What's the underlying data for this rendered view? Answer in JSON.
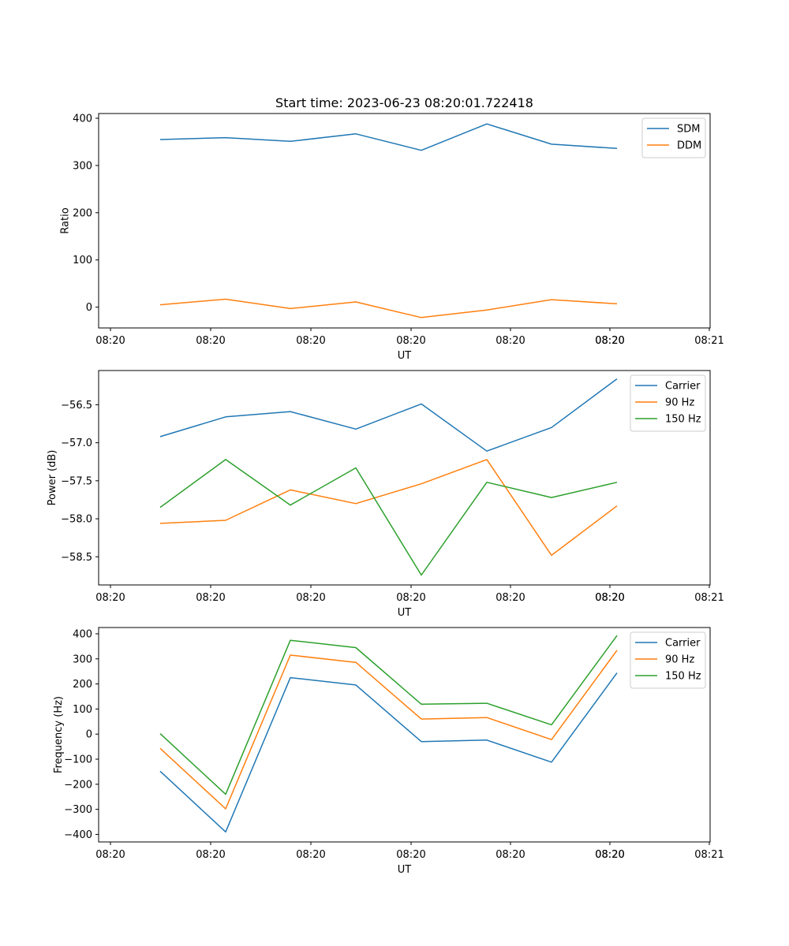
{
  "chart_data": [
    {
      "type": "line",
      "title": "Start time: 2023-06-23 08:20:01.722418",
      "xlabel": "UT",
      "ylabel": "Ratio",
      "x_tick_labels": [
        "08:20",
        "08:20",
        "08:20",
        "08:20",
        "08:20",
        "08:20",
        "08:20",
        "08:21"
      ],
      "yticks": [
        0,
        100,
        200,
        300,
        400
      ],
      "y_tick_labels": [
        "0",
        "100",
        "200",
        "300",
        "400"
      ],
      "ylim": [
        -44,
        410
      ],
      "grid": false,
      "legend": "top-right",
      "series": [
        {
          "name": "SDM",
          "color": "#1f77b4",
          "values": [
            355,
            359,
            351,
            367,
            332,
            388,
            345,
            336
          ]
        },
        {
          "name": "DDM",
          "color": "#ff7f0e",
          "values": [
            5,
            17,
            -3,
            11,
            -22,
            -6,
            16,
            7
          ]
        }
      ]
    },
    {
      "type": "line",
      "xlabel": "UT",
      "ylabel": "Power (dB)",
      "x_tick_labels": [
        "08:20",
        "08:20",
        "08:20",
        "08:20",
        "08:20",
        "08:20",
        "08:20",
        "08:21"
      ],
      "yticks": [
        -58.5,
        -58.0,
        -57.5,
        -57.0,
        -56.5
      ],
      "y_tick_labels": [
        "−58.5",
        "−58.0",
        "−57.5",
        "−57.0",
        "−56.5"
      ],
      "ylim": [
        -58.87,
        -56.05
      ],
      "grid": false,
      "legend": "top-right",
      "series": [
        {
          "name": "Carrier",
          "color": "#1f77b4",
          "values": [
            -56.92,
            -56.66,
            -56.59,
            -56.82,
            -56.49,
            -57.11,
            -56.8,
            -56.16
          ]
        },
        {
          "name": "90 Hz",
          "color": "#ff7f0e",
          "values": [
            -58.06,
            -58.02,
            -57.62,
            -57.8,
            -57.54,
            -57.22,
            -58.48,
            -57.83
          ]
        },
        {
          "name": "150 Hz",
          "color": "#2ca02c",
          "values": [
            -57.85,
            -57.22,
            -57.82,
            -57.33,
            -58.74,
            -57.52,
            -57.72,
            -57.52
          ]
        }
      ]
    },
    {
      "type": "line",
      "xlabel": "UT",
      "ylabel": "Frequency (Hz)",
      "x_tick_labels": [
        "08:20",
        "08:20",
        "08:20",
        "08:20",
        "08:20",
        "08:20",
        "08:20",
        "08:21"
      ],
      "yticks": [
        -400,
        -300,
        -200,
        -100,
        0,
        100,
        200,
        300,
        400
      ],
      "y_tick_labels": [
        "−400",
        "−300",
        "−200",
        "−100",
        "0",
        "100",
        "200",
        "300",
        "400"
      ],
      "ylim": [
        -430,
        425
      ],
      "grid": false,
      "legend": "top-right",
      "series": [
        {
          "name": "Carrier",
          "color": "#1f77b4",
          "values": [
            -148,
            -390,
            225,
            196,
            -30,
            -24,
            -112,
            244
          ]
        },
        {
          "name": "90 Hz",
          "color": "#ff7f0e",
          "values": [
            -57,
            -298,
            315,
            286,
            60,
            66,
            -22,
            334
          ]
        },
        {
          "name": "150 Hz",
          "color": "#2ca02c",
          "values": [
            2,
            -240,
            374,
            345,
            119,
            123,
            37,
            393
          ]
        }
      ]
    }
  ]
}
